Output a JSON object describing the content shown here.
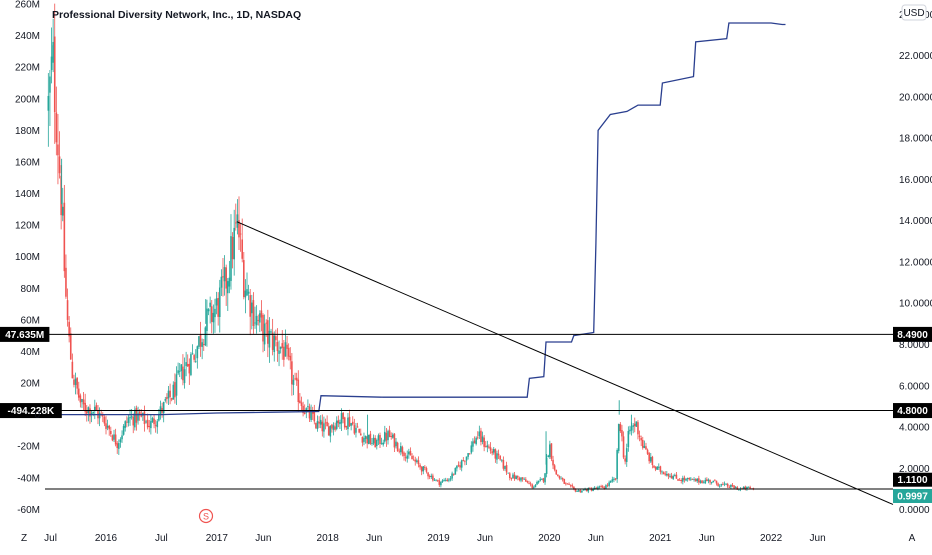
{
  "chart_data": {
    "type": "line",
    "title": "Professional Diversity Network, Inc., 1D, NASDAQ",
    "currency_label": "USD",
    "corner_left": "Z",
    "corner_right": "A",
    "event_marker": "S",
    "x_ticks": [
      {
        "label": "Jul",
        "date": 2015.5
      },
      {
        "label": "2016",
        "date": 2016.0
      },
      {
        "label": "Jul",
        "date": 2016.5
      },
      {
        "label": "2017",
        "date": 2017.0
      },
      {
        "label": "Jun",
        "date": 2017.42
      },
      {
        "label": "2018",
        "date": 2018.0
      },
      {
        "label": "Jun",
        "date": 2018.42
      },
      {
        "label": "2019",
        "date": 2019.0
      },
      {
        "label": "Jun",
        "date": 2019.42
      },
      {
        "label": "2020",
        "date": 2020.0
      },
      {
        "label": "Jun",
        "date": 2020.42
      },
      {
        "label": "2021",
        "date": 2021.0
      },
      {
        "label": "Jun",
        "date": 2021.42
      },
      {
        "label": "2022",
        "date": 2022.0
      },
      {
        "label": "Jun",
        "date": 2022.42
      }
    ],
    "xlim": [
      2015.45,
      2023.1
    ],
    "y_left": {
      "ticks": [
        "260M",
        "240M",
        "220M",
        "200M",
        "180M",
        "160M",
        "140M",
        "120M",
        "100M",
        "80M",
        "60M",
        "40M",
        "20M",
        "0",
        "-20M",
        "-40M",
        "-60M"
      ],
      "tick_values": [
        260,
        240,
        220,
        200,
        180,
        160,
        140,
        120,
        100,
        80,
        60,
        40,
        20,
        0,
        -20,
        -40,
        -60
      ],
      "ylim": [
        -68,
        260
      ]
    },
    "y_right": {
      "ticks": [
        "24.0000",
        "22.0000",
        "20.0000",
        "18.0000",
        "16.0000",
        "14.0000",
        "12.0000",
        "10.0000",
        "8.0000",
        "6.0000",
        "4.0000",
        "2.0000",
        "0.0000"
      ],
      "tick_values": [
        24,
        22,
        20,
        18,
        16,
        14,
        12,
        10,
        8,
        6,
        4,
        2,
        0
      ],
      "ylim": [
        -0.6,
        24.5
      ]
    },
    "horizontal_levels": [
      {
        "left_label": "47.635M",
        "right_label": "8.4900",
        "price": 8.49
      },
      {
        "left_label": "-494.228K",
        "right_label": "4.8000",
        "price": 4.8
      },
      {
        "left_label": "",
        "right_label": "",
        "price": 1.0
      }
    ],
    "price_badges": [
      {
        "label": "1.1100",
        "price": 1.11,
        "color": "#000000"
      },
      {
        "label": "0.9997",
        "price": 0.9997,
        "color": "#26a69a"
      }
    ],
    "trendline": {
      "x": [
        2017.18,
        2023.1
      ],
      "y": [
        13.95,
        0.25
      ]
    },
    "indicator_series": {
      "name": "",
      "color": "#2a3f8f",
      "axis": "left",
      "points": [
        [
          2015.45,
          0
        ],
        [
          2016.5,
          0
        ],
        [
          2017.0,
          1
        ],
        [
          2017.5,
          1.5
        ],
        [
          2017.92,
          2
        ],
        [
          2017.94,
          12
        ],
        [
          2018.5,
          11
        ],
        [
          2019.0,
          11
        ],
        [
          2019.8,
          11
        ],
        [
          2019.82,
          23
        ],
        [
          2019.95,
          24
        ],
        [
          2019.97,
          46
        ],
        [
          2020.2,
          46
        ],
        [
          2020.22,
          50
        ],
        [
          2020.4,
          52
        ],
        [
          2020.42,
          108
        ],
        [
          2020.44,
          180
        ],
        [
          2020.55,
          190
        ],
        [
          2020.7,
          192
        ],
        [
          2020.8,
          196
        ],
        [
          2021.0,
          196
        ],
        [
          2021.02,
          210
        ],
        [
          2021.3,
          214
        ],
        [
          2021.32,
          236
        ],
        [
          2021.6,
          238
        ],
        [
          2021.62,
          248
        ],
        [
          2022.0,
          248
        ],
        [
          2022.1,
          247
        ],
        [
          2022.13,
          247
        ]
      ]
    },
    "price_series": {
      "axis": "right",
      "up_color": "#26a69a",
      "down_color": "#ef5350",
      "knots": [
        [
          2015.48,
          19.5
        ],
        [
          2015.52,
          21.8
        ],
        [
          2015.56,
          18.5
        ],
        [
          2015.6,
          14.8
        ],
        [
          2015.63,
          11.0
        ],
        [
          2015.66,
          8.5
        ],
        [
          2015.7,
          6.5
        ],
        [
          2015.78,
          5.0
        ],
        [
          2015.9,
          4.8
        ],
        [
          2016.0,
          4.2
        ],
        [
          2016.1,
          3.2
        ],
        [
          2016.2,
          4.4
        ],
        [
          2016.3,
          4.5
        ],
        [
          2016.4,
          4.1
        ],
        [
          2016.5,
          4.8
        ],
        [
          2016.6,
          5.6
        ],
        [
          2016.7,
          6.8
        ],
        [
          2016.8,
          7.6
        ],
        [
          2016.9,
          9.0
        ],
        [
          2017.0,
          9.8
        ],
        [
          2017.08,
          11.0
        ],
        [
          2017.15,
          13.0
        ],
        [
          2017.19,
          13.8
        ],
        [
          2017.25,
          11.0
        ],
        [
          2017.35,
          9.3
        ],
        [
          2017.45,
          8.4
        ],
        [
          2017.6,
          7.8
        ],
        [
          2017.7,
          6.0
        ],
        [
          2017.8,
          4.8
        ],
        [
          2017.9,
          4.1
        ],
        [
          2018.0,
          3.9
        ],
        [
          2018.1,
          4.4
        ],
        [
          2018.2,
          4.3
        ],
        [
          2018.3,
          3.6
        ],
        [
          2018.42,
          3.2
        ],
        [
          2018.55,
          3.6
        ],
        [
          2018.65,
          3.0
        ],
        [
          2018.75,
          2.5
        ],
        [
          2018.85,
          2.0
        ],
        [
          2019.0,
          1.3
        ],
        [
          2019.1,
          1.5
        ],
        [
          2019.25,
          2.6
        ],
        [
          2019.35,
          3.6
        ],
        [
          2019.45,
          3.0
        ],
        [
          2019.55,
          2.4
        ],
        [
          2019.65,
          1.6
        ],
        [
          2019.75,
          1.5
        ],
        [
          2019.85,
          1.1
        ],
        [
          2019.95,
          1.5
        ],
        [
          2020.0,
          3.2
        ],
        [
          2020.05,
          1.8
        ],
        [
          2020.15,
          1.2
        ],
        [
          2020.25,
          0.9
        ],
        [
          2020.4,
          1.0
        ],
        [
          2020.5,
          1.1
        ],
        [
          2020.6,
          1.5
        ],
        [
          2020.63,
          4.6
        ],
        [
          2020.68,
          2.2
        ],
        [
          2020.72,
          3.8
        ],
        [
          2020.78,
          4.2
        ],
        [
          2020.85,
          3.0
        ],
        [
          2020.95,
          2.0
        ],
        [
          2021.05,
          1.8
        ],
        [
          2021.15,
          1.5
        ],
        [
          2021.3,
          1.4
        ],
        [
          2021.45,
          1.4
        ],
        [
          2021.55,
          1.2
        ],
        [
          2021.65,
          1.1
        ],
        [
          2021.72,
          1.0
        ],
        [
          2021.8,
          1.05
        ],
        [
          2021.84,
          1.0
        ]
      ],
      "spikes": [
        [
          2015.52,
          22.5
        ],
        [
          2015.6,
          17.0
        ],
        [
          2016.9,
          10.2
        ],
        [
          2017.19,
          14.0
        ],
        [
          2020.63,
          5.3
        ],
        [
          2020.74,
          4.6
        ],
        [
          2019.97,
          3.8
        ],
        [
          2018.36,
          4.6
        ]
      ]
    }
  }
}
